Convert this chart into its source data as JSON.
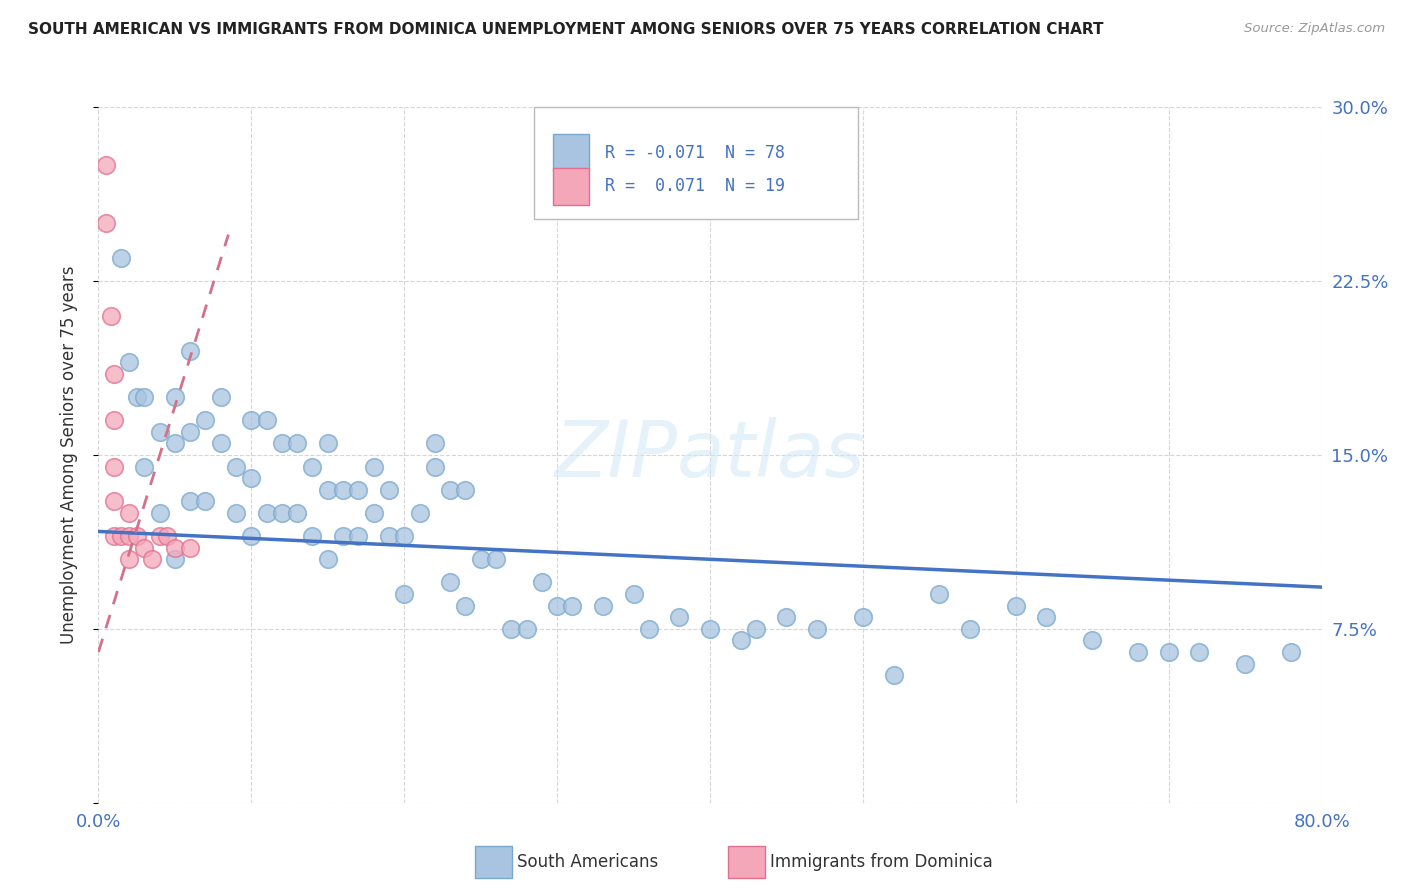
{
  "title": "SOUTH AMERICAN VS IMMIGRANTS FROM DOMINICA UNEMPLOYMENT AMONG SENIORS OVER 75 YEARS CORRELATION CHART",
  "source": "Source: ZipAtlas.com",
  "ylabel": "Unemployment Among Seniors over 75 years",
  "xmin": 0.0,
  "xmax": 0.8,
  "ymin": 0.0,
  "ymax": 0.3,
  "x_ticks": [
    0.0,
    0.1,
    0.2,
    0.3,
    0.4,
    0.5,
    0.6,
    0.7,
    0.8
  ],
  "y_ticks": [
    0.0,
    0.075,
    0.15,
    0.225,
    0.3
  ],
  "blue_R": -0.071,
  "blue_N": 78,
  "pink_R": 0.071,
  "pink_N": 19,
  "blue_color": "#a8c4e0",
  "blue_edge_color": "#7aa8cc",
  "pink_color": "#f4a7b9",
  "pink_edge_color": "#e07090",
  "trend_blue_color": "#4472c4",
  "trend_pink_color": "#d4708a",
  "legend_blue_label": "South Americans",
  "legend_pink_label": "Immigrants from Dominica",
  "blue_scatter_x": [
    0.015,
    0.02,
    0.025,
    0.03,
    0.03,
    0.04,
    0.04,
    0.05,
    0.05,
    0.05,
    0.06,
    0.06,
    0.06,
    0.07,
    0.07,
    0.08,
    0.08,
    0.09,
    0.09,
    0.1,
    0.1,
    0.1,
    0.11,
    0.11,
    0.12,
    0.12,
    0.13,
    0.13,
    0.14,
    0.14,
    0.15,
    0.15,
    0.15,
    0.16,
    0.16,
    0.17,
    0.17,
    0.18,
    0.18,
    0.19,
    0.19,
    0.2,
    0.2,
    0.21,
    0.22,
    0.22,
    0.23,
    0.23,
    0.24,
    0.24,
    0.25,
    0.26,
    0.27,
    0.28,
    0.29,
    0.3,
    0.31,
    0.33,
    0.35,
    0.36,
    0.38,
    0.4,
    0.42,
    0.43,
    0.45,
    0.47,
    0.5,
    0.52,
    0.55,
    0.57,
    0.6,
    0.62,
    0.65,
    0.68,
    0.7,
    0.72,
    0.75,
    0.78
  ],
  "blue_scatter_y": [
    0.235,
    0.19,
    0.175,
    0.175,
    0.145,
    0.16,
    0.125,
    0.175,
    0.155,
    0.105,
    0.195,
    0.16,
    0.13,
    0.165,
    0.13,
    0.175,
    0.155,
    0.145,
    0.125,
    0.165,
    0.14,
    0.115,
    0.165,
    0.125,
    0.155,
    0.125,
    0.155,
    0.125,
    0.145,
    0.115,
    0.155,
    0.135,
    0.105,
    0.135,
    0.115,
    0.135,
    0.115,
    0.145,
    0.125,
    0.135,
    0.115,
    0.115,
    0.09,
    0.125,
    0.155,
    0.145,
    0.135,
    0.095,
    0.135,
    0.085,
    0.105,
    0.105,
    0.075,
    0.075,
    0.095,
    0.085,
    0.085,
    0.085,
    0.09,
    0.075,
    0.08,
    0.075,
    0.07,
    0.075,
    0.08,
    0.075,
    0.08,
    0.055,
    0.09,
    0.075,
    0.085,
    0.08,
    0.07,
    0.065,
    0.065,
    0.065,
    0.06,
    0.065
  ],
  "pink_scatter_x": [
    0.005,
    0.005,
    0.008,
    0.01,
    0.01,
    0.01,
    0.01,
    0.01,
    0.015,
    0.02,
    0.02,
    0.02,
    0.025,
    0.03,
    0.035,
    0.04,
    0.045,
    0.05,
    0.06
  ],
  "pink_scatter_y": [
    0.275,
    0.25,
    0.21,
    0.185,
    0.165,
    0.145,
    0.13,
    0.115,
    0.115,
    0.125,
    0.115,
    0.105,
    0.115,
    0.11,
    0.105,
    0.115,
    0.115,
    0.11,
    0.11
  ],
  "blue_trend_x0": 0.0,
  "blue_trend_x1": 0.8,
  "blue_trend_y0": 0.117,
  "blue_trend_y1": 0.093,
  "pink_trend_x0": 0.0,
  "pink_trend_x1": 0.085,
  "pink_trend_y0": 0.065,
  "pink_trend_y1": 0.245
}
